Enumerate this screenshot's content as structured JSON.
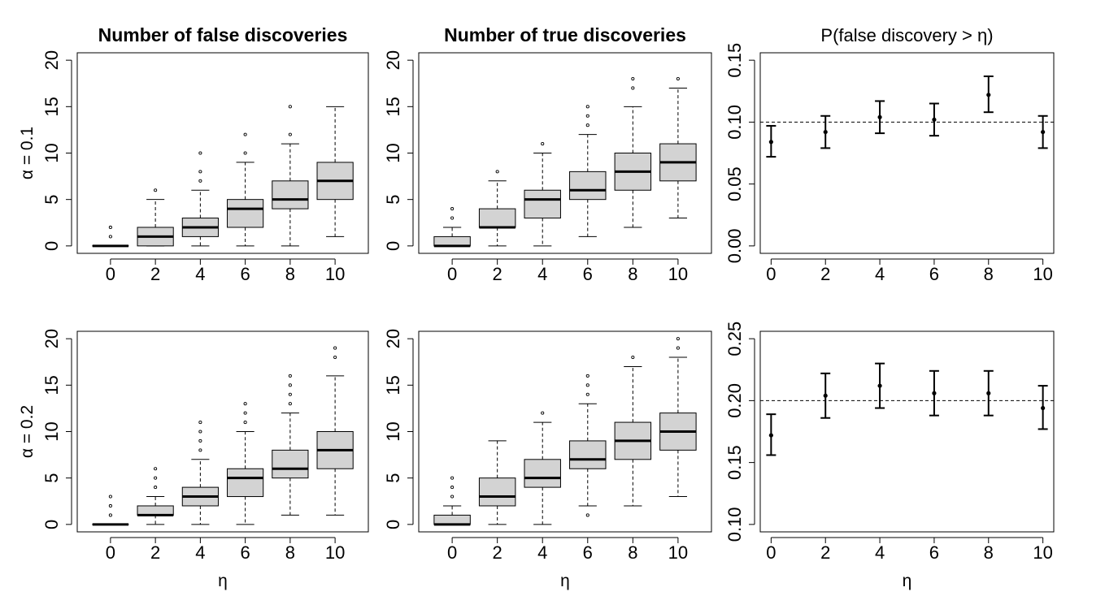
{
  "figure": {
    "row_labels": [
      "α = 0.1",
      "α = 0.2"
    ],
    "x_label": "η"
  },
  "chart_data": [
    {
      "id": "fd1",
      "type": "box",
      "title": "Number of false discoveries",
      "title_bold": true,
      "ylabel": "α = 0.1",
      "xlabel": "",
      "ylim": [
        0,
        20
      ],
      "yticks": [
        0,
        5,
        10,
        15,
        20
      ],
      "categories": [
        "0",
        "2",
        "4",
        "6",
        "8",
        "10"
      ],
      "boxes": [
        {
          "q1": 0,
          "median": 0,
          "q3": 0,
          "whisker_low": 0,
          "whisker_high": 0,
          "outliers": [
            1,
            2
          ]
        },
        {
          "q1": 0,
          "median": 1,
          "q3": 2,
          "whisker_low": 0,
          "whisker_high": 5,
          "outliers": [
            6
          ]
        },
        {
          "q1": 1,
          "median": 2,
          "q3": 3,
          "whisker_low": 0,
          "whisker_high": 6,
          "outliers": [
            7,
            8,
            10
          ]
        },
        {
          "q1": 2,
          "median": 4,
          "q3": 5,
          "whisker_low": 0,
          "whisker_high": 9,
          "outliers": [
            10,
            12
          ]
        },
        {
          "q1": 4,
          "median": 5,
          "q3": 7,
          "whisker_low": 0,
          "whisker_high": 11,
          "outliers": [
            12,
            15
          ]
        },
        {
          "q1": 5,
          "median": 7,
          "q3": 9,
          "whisker_low": 1,
          "whisker_high": 15,
          "outliers": []
        }
      ]
    },
    {
      "id": "td1",
      "type": "box",
      "title": "Number of true discoveries",
      "title_bold": true,
      "ylabel": "",
      "xlabel": "",
      "ylim": [
        0,
        20
      ],
      "yticks": [
        0,
        5,
        10,
        15,
        20
      ],
      "categories": [
        "0",
        "2",
        "4",
        "6",
        "8",
        "10"
      ],
      "boxes": [
        {
          "q1": 0,
          "median": 0,
          "q3": 1,
          "whisker_low": 0,
          "whisker_high": 2,
          "outliers": [
            3,
            4
          ]
        },
        {
          "q1": 2,
          "median": 2,
          "q3": 4,
          "whisker_low": 0,
          "whisker_high": 7,
          "outliers": [
            8
          ]
        },
        {
          "q1": 3,
          "median": 5,
          "q3": 6,
          "whisker_low": 0,
          "whisker_high": 10,
          "outliers": [
            11
          ]
        },
        {
          "q1": 5,
          "median": 6,
          "q3": 8,
          "whisker_low": 1,
          "whisker_high": 12,
          "outliers": [
            13,
            14,
            15
          ]
        },
        {
          "q1": 6,
          "median": 8,
          "q3": 10,
          "whisker_low": 2,
          "whisker_high": 15,
          "outliers": [
            17,
            18
          ]
        },
        {
          "q1": 7,
          "median": 9,
          "q3": 11,
          "whisker_low": 3,
          "whisker_high": 17,
          "outliers": [
            18
          ]
        }
      ]
    },
    {
      "id": "p1",
      "type": "errorbar",
      "title": "P(false discovery > η)",
      "title_bold": false,
      "ylabel": "",
      "xlabel": "",
      "ylim": [
        0,
        0.15
      ],
      "yticks": [
        "0.00",
        "0.05",
        "0.10",
        "0.15"
      ],
      "yticks_num": [
        0,
        0.05,
        0.1,
        0.15
      ],
      "x": [
        0,
        2,
        4,
        6,
        8,
        10
      ],
      "x_tick_labels": [
        "0",
        "2",
        "4",
        "6",
        "8",
        "10"
      ],
      "points": [
        {
          "x": 0,
          "y": 0.084,
          "lower": 0.072,
          "upper": 0.097
        },
        {
          "x": 2,
          "y": 0.092,
          "lower": 0.079,
          "upper": 0.105
        },
        {
          "x": 4,
          "y": 0.104,
          "lower": 0.091,
          "upper": 0.117
        },
        {
          "x": 6,
          "y": 0.102,
          "lower": 0.089,
          "upper": 0.115
        },
        {
          "x": 8,
          "y": 0.122,
          "lower": 0.108,
          "upper": 0.137
        },
        {
          "x": 10,
          "y": 0.092,
          "lower": 0.079,
          "upper": 0.105
        }
      ],
      "reference_line": 0.1
    },
    {
      "id": "fd2",
      "type": "box",
      "title": "",
      "title_bold": true,
      "ylabel": "α = 0.2",
      "xlabel": "η",
      "ylim": [
        0,
        20
      ],
      "yticks": [
        0,
        5,
        10,
        15,
        20
      ],
      "categories": [
        "0",
        "2",
        "4",
        "6",
        "8",
        "10"
      ],
      "boxes": [
        {
          "q1": 0,
          "median": 0,
          "q3": 0,
          "whisker_low": 0,
          "whisker_high": 0,
          "outliers": [
            1,
            2,
            3
          ]
        },
        {
          "q1": 1,
          "median": 1,
          "q3": 2,
          "whisker_low": 0,
          "whisker_high": 3,
          "outliers": [
            4,
            5,
            6
          ]
        },
        {
          "q1": 2,
          "median": 3,
          "q3": 4,
          "whisker_low": 0,
          "whisker_high": 7,
          "outliers": [
            8,
            9,
            10,
            11
          ]
        },
        {
          "q1": 3,
          "median": 5,
          "q3": 6,
          "whisker_low": 0,
          "whisker_high": 10,
          "outliers": [
            11,
            12,
            13
          ]
        },
        {
          "q1": 5,
          "median": 6,
          "q3": 8,
          "whisker_low": 1,
          "whisker_high": 12,
          "outliers": [
            13,
            14,
            15,
            16
          ]
        },
        {
          "q1": 6,
          "median": 8,
          "q3": 10,
          "whisker_low": 1,
          "whisker_high": 16,
          "outliers": [
            18,
            19
          ]
        }
      ]
    },
    {
      "id": "td2",
      "type": "box",
      "title": "",
      "title_bold": true,
      "ylabel": "",
      "xlabel": "η",
      "ylim": [
        0,
        20
      ],
      "yticks": [
        0,
        5,
        10,
        15,
        20
      ],
      "categories": [
        "0",
        "2",
        "4",
        "6",
        "8",
        "10"
      ],
      "boxes": [
        {
          "q1": 0,
          "median": 0,
          "q3": 1,
          "whisker_low": 0,
          "whisker_high": 2,
          "outliers": [
            3,
            4,
            5
          ]
        },
        {
          "q1": 2,
          "median": 3,
          "q3": 5,
          "whisker_low": 0,
          "whisker_high": 9,
          "outliers": []
        },
        {
          "q1": 4,
          "median": 5,
          "q3": 7,
          "whisker_low": 0,
          "whisker_high": 11,
          "outliers": [
            12
          ]
        },
        {
          "q1": 6,
          "median": 7,
          "q3": 9,
          "whisker_low": 2,
          "whisker_high": 13,
          "outliers": [
            1,
            14,
            15,
            16
          ]
        },
        {
          "q1": 7,
          "median": 9,
          "q3": 11,
          "whisker_low": 2,
          "whisker_high": 17,
          "outliers": [
            18
          ]
        },
        {
          "q1": 8,
          "median": 10,
          "q3": 12,
          "whisker_low": 3,
          "whisker_high": 18,
          "outliers": [
            19,
            20
          ]
        }
      ]
    },
    {
      "id": "p2",
      "type": "errorbar",
      "title": "",
      "title_bold": false,
      "ylabel": "",
      "xlabel": "η",
      "ylim": [
        0.1,
        0.25
      ],
      "yticks": [
        "0.10",
        "0.15",
        "0.20",
        "0.25"
      ],
      "yticks_num": [
        0.1,
        0.15,
        0.2,
        0.25
      ],
      "x": [
        0,
        2,
        4,
        6,
        8,
        10
      ],
      "x_tick_labels": [
        "0",
        "2",
        "4",
        "6",
        "8",
        "10"
      ],
      "points": [
        {
          "x": 0,
          "y": 0.172,
          "lower": 0.156,
          "upper": 0.189
        },
        {
          "x": 2,
          "y": 0.204,
          "lower": 0.186,
          "upper": 0.222
        },
        {
          "x": 4,
          "y": 0.212,
          "lower": 0.194,
          "upper": 0.23
        },
        {
          "x": 6,
          "y": 0.206,
          "lower": 0.188,
          "upper": 0.224
        },
        {
          "x": 8,
          "y": 0.206,
          "lower": 0.188,
          "upper": 0.224
        },
        {
          "x": 10,
          "y": 0.194,
          "lower": 0.177,
          "upper": 0.212
        }
      ],
      "reference_line": 0.2
    }
  ]
}
